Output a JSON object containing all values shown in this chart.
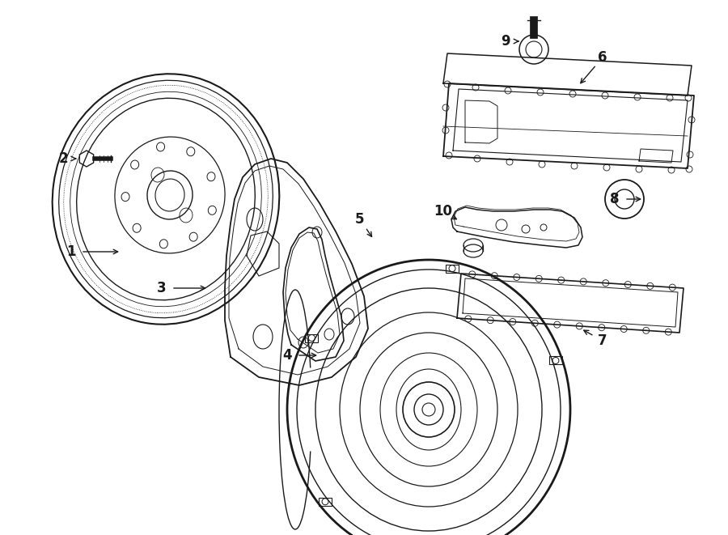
{
  "bg_color": "#ffffff",
  "line_color": "#1a1a1a",
  "fig_width": 9.0,
  "fig_height": 6.61,
  "lw": 1.3
}
